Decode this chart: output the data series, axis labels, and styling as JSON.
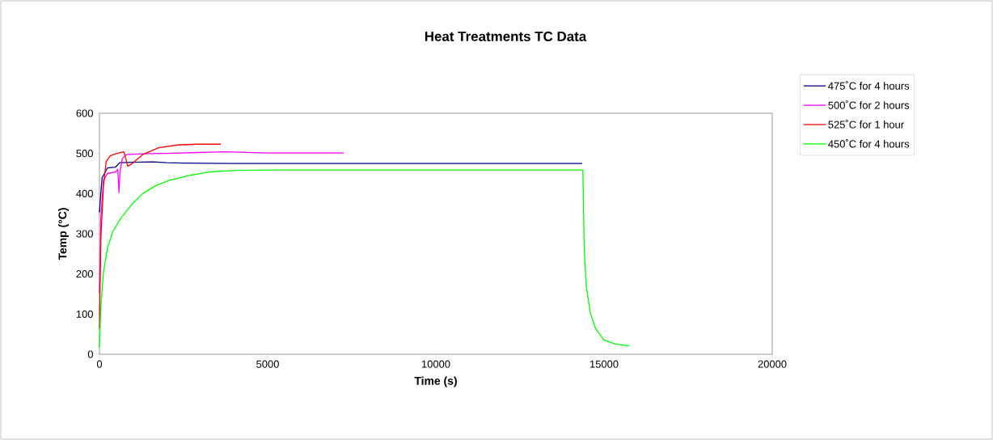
{
  "chart_data": {
    "type": "line",
    "title": "Heat Treatments TC Data",
    "xlabel": "Time (s)",
    "ylabel": "Temp (°C)",
    "xlim": [
      0,
      20000
    ],
    "ylim": [
      0,
      600
    ],
    "xticks": [
      0,
      5000,
      10000,
      15000,
      20000
    ],
    "yticks": [
      0,
      100,
      200,
      300,
      400,
      500,
      600
    ],
    "grid": false,
    "legend": "right",
    "series": [
      {
        "name": "475˚C for 4 hours",
        "color": "#000080",
        "x": [
          0,
          40,
          80,
          240,
          480,
          600,
          1000,
          1600,
          2000,
          2480,
          4000,
          6000,
          8000,
          10000,
          12000,
          14350
        ],
        "values": [
          353,
          400,
          440,
          464,
          466,
          477,
          478,
          479,
          477,
          476,
          475,
          475,
          475,
          475,
          475,
          475
        ]
      },
      {
        "name": "500˚C for 2 hours",
        "color": "#ff00ff",
        "x": [
          0,
          40,
          120,
          240,
          480,
          545,
          580,
          610,
          680,
          800,
          1280,
          2000,
          3680,
          5000,
          7260
        ],
        "values": [
          151,
          339,
          433,
          450,
          454,
          460,
          403,
          454,
          487,
          497,
          499,
          500,
          504,
          501,
          501
        ]
      },
      {
        "name": "525˚C for 1 hour",
        "color": "#ff0000",
        "x": [
          0,
          40,
          120,
          200,
          320,
          480,
          721,
          761,
          841,
          961,
          1282,
          1762,
          2323,
          2884,
          3605
        ],
        "values": [
          64,
          285,
          420,
          480,
          494,
          499,
          504,
          494,
          468,
          474,
          497,
          514,
          521,
          523,
          523
        ]
      },
      {
        "name": "450˚C for 4 hours",
        "color": "#00ff00",
        "x": [
          0,
          40,
          120,
          240,
          400,
          641,
          961,
          1282,
          1682,
          2083,
          2724,
          3285,
          4086,
          5288,
          8000,
          11000,
          14370,
          14390,
          14413,
          14471,
          14591,
          14752,
          14992,
          15313,
          15753
        ],
        "values": [
          17,
          118,
          205,
          265,
          306,
          339,
          373,
          400,
          420,
          433,
          446,
          454,
          458,
          459,
          459,
          459,
          459,
          358,
          258,
          170,
          103,
          63,
          36,
          26,
          21
        ]
      }
    ]
  }
}
